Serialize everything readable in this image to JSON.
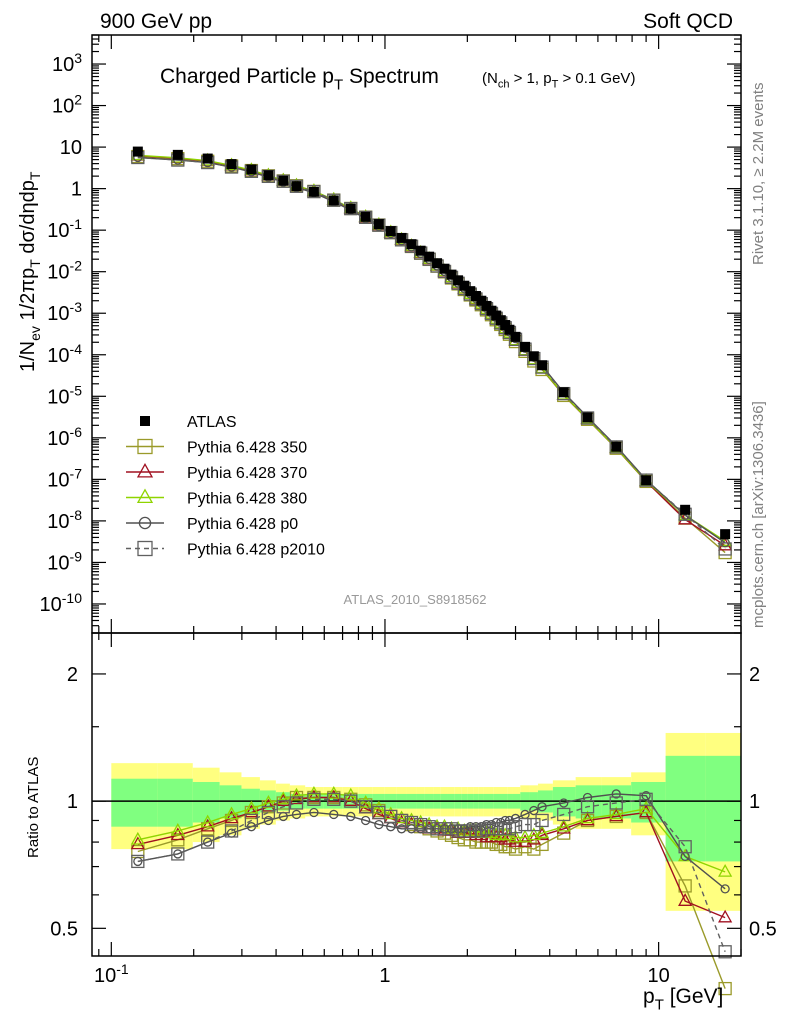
{
  "header": {
    "left": "900 GeV pp",
    "right": "Soft QCD"
  },
  "side_labels": {
    "rivet": "Rivet 3.1.10, ≥ 2.2M events",
    "mcplots": "mcplots.cern.ch [arXiv:1306.3436]"
  },
  "analysis_tag": "ATLAS_2010_S8918562",
  "chart_data": [
    {
      "type": "scatter",
      "panel": "main",
      "title": "Charged Particle p_T Spectrum",
      "subtitle": "(N_ch > 1, p_T > 0.1 GeV)",
      "ylabel": "1/N_ev 1/2πp_T dσ/dηdp_T",
      "xlabel": "",
      "xscale": "log",
      "yscale": "log",
      "xlim": [
        0.085,
        20
      ],
      "ylim": [
        2e-11,
        5000
      ],
      "yticks": [
        "10^3",
        "10^2",
        "10",
        "1",
        "10^-1",
        "10^-2",
        "10^-3",
        "10^-4",
        "10^-5",
        "10^-6",
        "10^-7",
        "10^-8",
        "10^-9",
        "10^-10"
      ],
      "legend_position": "bottom-left",
      "x": [
        0.125,
        0.175,
        0.225,
        0.275,
        0.325,
        0.375,
        0.425,
        0.475,
        0.55,
        0.65,
        0.75,
        0.85,
        0.95,
        1.05,
        1.15,
        1.25,
        1.35,
        1.45,
        1.55,
        1.65,
        1.75,
        1.85,
        1.95,
        2.05,
        2.15,
        2.25,
        2.35,
        2.45,
        2.55,
        2.65,
        2.75,
        2.85,
        3.0,
        3.25,
        3.5,
        3.75,
        4.5,
        5.5,
        7.0,
        9.0,
        12.5,
        17.5
      ],
      "series": [
        {
          "name": "ATLAS",
          "marker": "filled-square",
          "color": "#000000",
          "y": [
            7.8,
            6.5,
            5.3,
            3.9,
            2.9,
            2.1,
            1.55,
            1.15,
            0.84,
            0.52,
            0.33,
            0.21,
            0.14,
            0.095,
            0.065,
            0.046,
            0.032,
            0.023,
            0.016,
            0.0118,
            0.0085,
            0.0062,
            0.0046,
            0.0034,
            0.0026,
            0.002,
            0.0015,
            0.00115,
            0.00088,
            0.00068,
            0.00052,
            0.0004,
            0.00027,
            0.000155,
            9.2e-05,
            5.6e-05,
            1.25e-05,
            3.1e-06,
            6.1e-07,
            9.5e-08,
            1.85e-08,
            4.8e-09
          ]
        },
        {
          "name": "Pythia 6.428 350",
          "marker": "open-square",
          "color": "#9a9a2a",
          "ratio": [
            0.76,
            0.81,
            0.86,
            0.9,
            0.94,
            0.97,
            0.99,
            1.02,
            1.02,
            1.02,
            1.01,
            0.98,
            0.95,
            0.92,
            0.9,
            0.88,
            0.87,
            0.86,
            0.85,
            0.84,
            0.83,
            0.82,
            0.81,
            0.81,
            0.8,
            0.8,
            0.8,
            0.8,
            0.79,
            0.79,
            0.78,
            0.78,
            0.77,
            0.78,
            0.77,
            0.79,
            0.84,
            0.9,
            0.92,
            0.94,
            0.63,
            0.36
          ]
        },
        {
          "name": "Pythia 6.428 370",
          "marker": "open-triangle",
          "color": "#a01020",
          "ratio": [
            0.79,
            0.83,
            0.87,
            0.91,
            0.94,
            0.97,
            1.0,
            1.01,
            1.02,
            1.02,
            1.0,
            0.96,
            0.93,
            0.91,
            0.89,
            0.88,
            0.87,
            0.86,
            0.86,
            0.85,
            0.85,
            0.84,
            0.84,
            0.84,
            0.83,
            0.83,
            0.82,
            0.82,
            0.82,
            0.82,
            0.81,
            0.81,
            0.8,
            0.8,
            0.81,
            0.83,
            0.86,
            0.9,
            0.92,
            0.94,
            0.58,
            0.53
          ]
        },
        {
          "name": "Pythia 6.428 380",
          "marker": "open-triangle",
          "color": "#8fd400",
          "ratio": [
            0.81,
            0.85,
            0.89,
            0.93,
            0.96,
            0.99,
            1.01,
            1.03,
            1.04,
            1.04,
            1.03,
            0.99,
            0.96,
            0.93,
            0.91,
            0.9,
            0.89,
            0.88,
            0.87,
            0.87,
            0.86,
            0.86,
            0.85,
            0.85,
            0.85,
            0.84,
            0.84,
            0.84,
            0.83,
            0.83,
            0.83,
            0.83,
            0.82,
            0.82,
            0.83,
            0.84,
            0.87,
            0.91,
            0.93,
            0.96,
            0.74,
            0.68
          ]
        },
        {
          "name": "Pythia 6.428 p0",
          "marker": "open-circle",
          "color": "#505050",
          "ratio": [
            0.72,
            0.75,
            0.8,
            0.84,
            0.87,
            0.9,
            0.92,
            0.93,
            0.94,
            0.93,
            0.92,
            0.9,
            0.88,
            0.87,
            0.86,
            0.86,
            0.86,
            0.86,
            0.86,
            0.86,
            0.86,
            0.86,
            0.86,
            0.87,
            0.87,
            0.87,
            0.88,
            0.88,
            0.89,
            0.89,
            0.9,
            0.9,
            0.91,
            0.93,
            0.95,
            0.97,
            0.99,
            1.02,
            1.04,
            1.03,
            0.74,
            0.62
          ]
        },
        {
          "name": "Pythia 6.428 p2010",
          "marker": "open-square",
          "line": "dashed",
          "color": "#606060",
          "ratio": [
            0.72,
            0.75,
            0.8,
            0.85,
            0.9,
            0.94,
            0.97,
            0.99,
            1.01,
            1.01,
            1.0,
            0.97,
            0.94,
            0.92,
            0.9,
            0.89,
            0.88,
            0.87,
            0.86,
            0.86,
            0.86,
            0.85,
            0.85,
            0.85,
            0.85,
            0.85,
            0.86,
            0.86,
            0.86,
            0.86,
            0.86,
            0.86,
            0.87,
            0.88,
            0.88,
            0.9,
            0.93,
            0.97,
            0.99,
            1.01,
            0.78,
            0.44
          ]
        }
      ]
    },
    {
      "type": "scatter",
      "panel": "ratio",
      "ylabel": "Ratio to ATLAS",
      "xlabel": "p_T [GeV]",
      "xscale": "log",
      "yscale": "log",
      "xlim": [
        0.085,
        20
      ],
      "ylim": [
        0.43,
        2.5
      ],
      "xticks": [
        "10^-1",
        "1",
        "10"
      ],
      "yticks": [
        "0.5",
        "1",
        "2"
      ],
      "reference_line": 1,
      "uncertainty_band_inner": [
        0.13,
        0.13,
        0.11,
        0.09,
        0.07,
        0.06,
        0.05,
        0.04,
        0.04,
        0.04,
        0.04,
        0.04,
        0.04,
        0.04,
        0.04,
        0.04,
        0.04,
        0.04,
        0.04,
        0.04,
        0.04,
        0.04,
        0.04,
        0.04,
        0.04,
        0.04,
        0.04,
        0.04,
        0.04,
        0.04,
        0.04,
        0.04,
        0.04,
        0.05,
        0.05,
        0.06,
        0.08,
        0.09,
        0.09,
        0.11,
        0.28,
        0.28
      ],
      "uncertainty_band_outer": [
        0.23,
        0.23,
        0.2,
        0.17,
        0.14,
        0.12,
        0.1,
        0.09,
        0.08,
        0.08,
        0.08,
        0.08,
        0.08,
        0.08,
        0.08,
        0.08,
        0.08,
        0.08,
        0.08,
        0.08,
        0.08,
        0.08,
        0.08,
        0.08,
        0.08,
        0.08,
        0.08,
        0.08,
        0.08,
        0.08,
        0.08,
        0.08,
        0.08,
        0.09,
        0.09,
        0.1,
        0.12,
        0.14,
        0.14,
        0.17,
        0.45,
        0.45
      ]
    }
  ]
}
